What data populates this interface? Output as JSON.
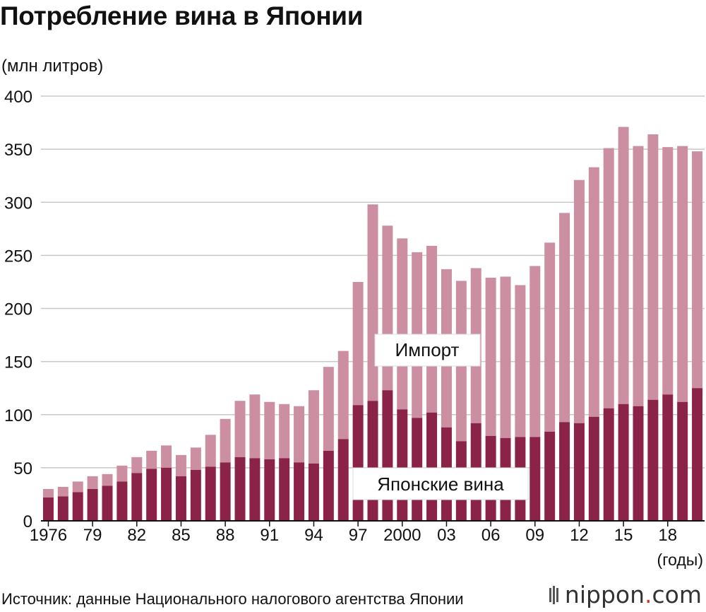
{
  "title": "Потребление вина в Японии",
  "unit_label": "(млн литров)",
  "x_unit_label": "(годы)",
  "source": "Источник: данные Национального налогового агентства Японии",
  "logo": {
    "name": "nippon",
    "dot": ".",
    "domain": "com"
  },
  "colors": {
    "domestic": "#8b2349",
    "import": "#cc8fa2",
    "grid": "#c8c8c8",
    "axis": "#111111"
  },
  "chart_data": {
    "type": "bar",
    "stacked": true,
    "x": [
      1976,
      1977,
      1978,
      1979,
      1980,
      1981,
      1982,
      1983,
      1984,
      1985,
      1986,
      1987,
      1988,
      1989,
      1990,
      1991,
      1992,
      1993,
      1994,
      1995,
      1996,
      1997,
      1998,
      1999,
      2000,
      2001,
      2002,
      2003,
      2004,
      2005,
      2006,
      2007,
      2008,
      2009,
      2010,
      2011,
      2012,
      2013,
      2014,
      2015,
      2016,
      2017,
      2018,
      2019,
      2020
    ],
    "tick_labels": [
      "1976",
      "79",
      "82",
      "85",
      "88",
      "91",
      "94",
      "97",
      "2000",
      "03",
      "06",
      "09",
      "12",
      "15",
      "18"
    ],
    "series": [
      {
        "name": "Японские вина",
        "values": [
          22,
          23,
          27,
          30,
          33,
          37,
          45,
          49,
          50,
          42,
          48,
          51,
          55,
          60,
          59,
          58,
          59,
          55,
          54,
          66,
          77,
          109,
          113,
          123,
          105,
          97,
          102,
          88,
          75,
          92,
          80,
          78,
          79,
          79,
          84,
          93,
          92,
          98,
          106,
          110,
          108,
          114,
          119,
          112,
          125
        ]
      },
      {
        "name": "Импорт",
        "values": [
          8,
          9,
          10,
          12,
          11,
          15,
          15,
          17,
          21,
          20,
          21,
          30,
          41,
          53,
          60,
          54,
          51,
          53,
          69,
          79,
          83,
          116,
          185,
          155,
          161,
          156,
          157,
          149,
          151,
          146,
          149,
          152,
          143,
          161,
          178,
          197,
          229,
          235,
          245,
          261,
          245,
          250,
          233,
          241,
          223
        ]
      }
    ],
    "ylim": [
      0,
      400
    ],
    "yticks": [
      0,
      50,
      100,
      150,
      200,
      250,
      300,
      350,
      400
    ],
    "grid": true,
    "annotations": [
      "Импорт",
      "Японские вина"
    ]
  }
}
